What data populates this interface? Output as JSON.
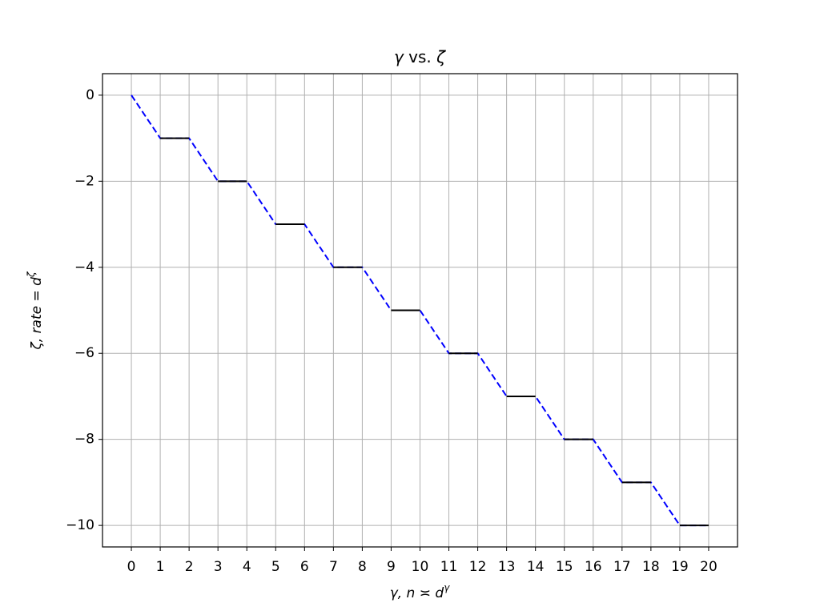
{
  "chart_data": {
    "type": "line",
    "title": {
      "a": "γ",
      "b": " vs. ",
      "c": "ζ"
    },
    "x_label": {
      "main": "γ,  n ≍ d",
      "sup": "γ"
    },
    "y_label": {
      "main": "ζ,  rate = d",
      "sup": "ζ"
    },
    "x": [
      0,
      1,
      2,
      3,
      4,
      5,
      6,
      7,
      8,
      9,
      10,
      11,
      12,
      13,
      14,
      15,
      16,
      17,
      18,
      19,
      20
    ],
    "series": [
      {
        "color": "#0000ff",
        "dashed": true,
        "values": [
          0,
          -1,
          -1,
          -2,
          -2,
          -3,
          -3,
          -4,
          -4,
          -5,
          -5,
          -6,
          -6,
          -7,
          -7,
          -8,
          -8,
          -9,
          -9,
          -10,
          -10
        ]
      },
      {
        "color": "#000000",
        "dashed": false,
        "x": [
          1,
          2,
          null,
          3,
          4,
          null,
          5,
          6,
          null,
          7,
          8,
          null,
          9,
          10,
          null,
          11,
          12,
          null,
          13,
          14,
          null,
          15,
          16,
          null,
          17,
          18,
          null,
          19,
          20
        ],
        "values": [
          -1,
          -1,
          null,
          -2,
          -2,
          null,
          -3,
          -3,
          null,
          -4,
          -4,
          null,
          -5,
          -5,
          null,
          -6,
          -6,
          null,
          -7,
          -7,
          null,
          -8,
          -8,
          null,
          -9,
          -9,
          null,
          -10,
          -10
        ]
      }
    ],
    "xlim": [
      -1,
      21
    ],
    "ylim": [
      -10.5,
      0.5
    ],
    "xticks": [
      0,
      1,
      2,
      3,
      4,
      5,
      6,
      7,
      8,
      9,
      10,
      11,
      12,
      13,
      14,
      15,
      16,
      17,
      18,
      19,
      20
    ],
    "yticks": [
      0,
      {
        "value": -2,
        "label": "−2"
      },
      {
        "value": -4,
        "label": "−4"
      },
      {
        "value": -6,
        "label": "−6"
      },
      {
        "value": -8,
        "label": "−8"
      },
      {
        "value": -10,
        "label": "−10"
      }
    ],
    "grid": true
  }
}
